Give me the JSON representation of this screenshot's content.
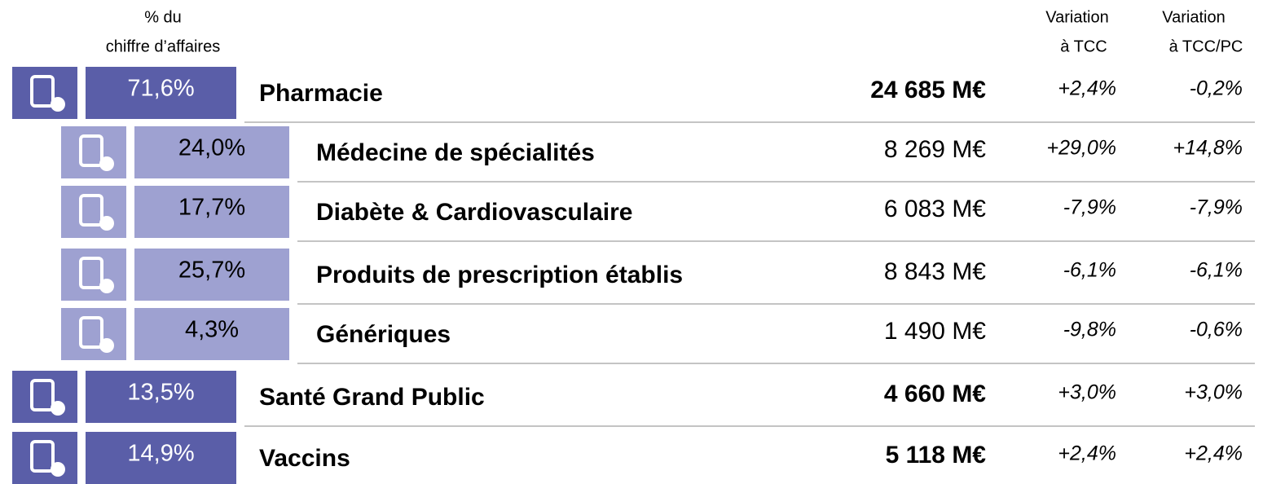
{
  "header": {
    "share": [
      "% du",
      "chiffre d’affaires"
    ],
    "var_tcc": [
      "Variation",
      "à TCC"
    ],
    "var_tcc_pc": [
      "Variation",
      "à TCC/PC"
    ]
  },
  "table": {
    "rows": [
      {
        "share": "71,6%",
        "name": "Pharmacie",
        "revenue": "24 685 M€",
        "var_tcc": "+2,4%",
        "var_tcc_pc": "-0,2%",
        "children": [
          {
            "share": "24,0%",
            "name": "Médecine de spécialités",
            "revenue": "8 269 M€",
            "var_tcc": "+29,0%",
            "var_tcc_pc": "+14,8%"
          },
          {
            "share": "17,7%",
            "name": "Diabète & Cardiovasculaire",
            "revenue": "6 083 M€",
            "var_tcc": "-7,9%",
            "var_tcc_pc": "-7,9%"
          },
          {
            "share": "25,7%",
            "name": "Produits de prescription établis",
            "revenue": "8 843 M€",
            "var_tcc": "-6,1%",
            "var_tcc_pc": "-6,1%"
          },
          {
            "share": "4,3%",
            "name": "Génériques",
            "revenue": "1 490 M€",
            "var_tcc": "-9,8%",
            "var_tcc_pc": "-0,6%"
          }
        ]
      },
      {
        "share": "13,5%",
        "name": "Santé Grand Public",
        "revenue": "4 660 M€",
        "var_tcc": "+3,0%",
        "var_tcc_pc": "+3,0%"
      },
      {
        "share": "14,9%",
        "name": "Vaccins",
        "revenue": "5 118 M€",
        "var_tcc": "+2,4%",
        "var_tcc_pc": "+2,4%"
      }
    ]
  }
}
